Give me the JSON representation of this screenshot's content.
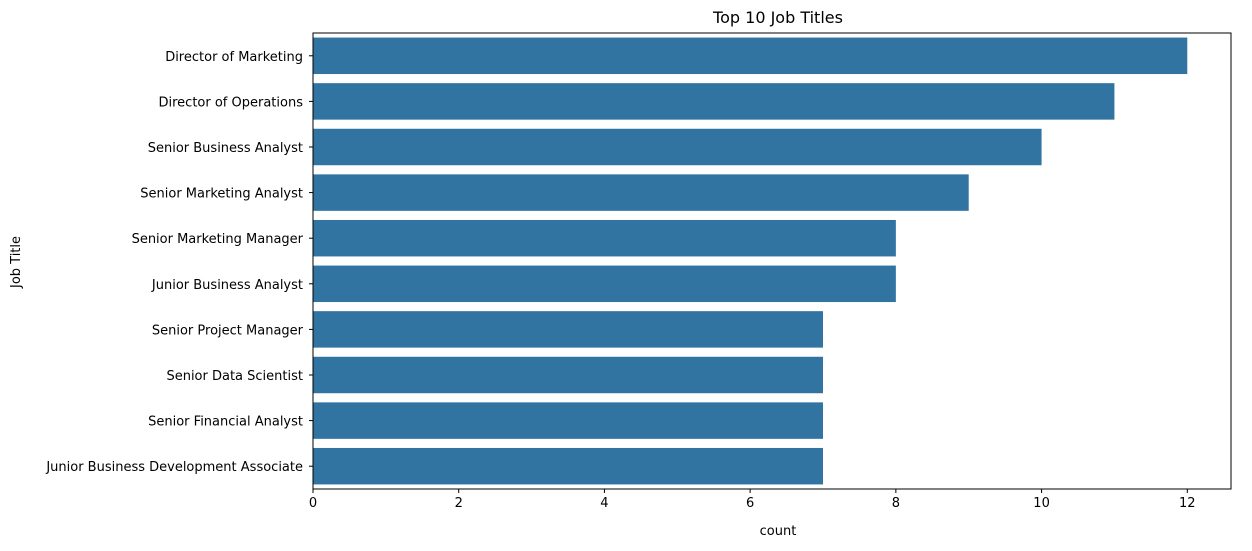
{
  "chart_data": {
    "type": "bar",
    "orientation": "horizontal",
    "title": "Top 10 Job Titles",
    "xlabel": "count",
    "ylabel": "Job Title",
    "categories": [
      "Director of Marketing",
      "Director of Operations",
      "Senior Business Analyst",
      "Senior Marketing Analyst",
      "Senior Marketing Manager",
      "Junior Business Analyst",
      "Senior Project Manager",
      "Senior Data Scientist",
      "Senior Financial Analyst",
      "Junior Business Development Associate"
    ],
    "values": [
      12,
      11,
      10,
      9,
      8,
      8,
      7,
      7,
      7,
      7
    ],
    "xlim": [
      0,
      12.6
    ],
    "xticks": [
      0,
      2,
      4,
      6,
      8,
      10,
      12
    ],
    "grid": false,
    "legend": "none",
    "bar_color": "#3274a1"
  }
}
